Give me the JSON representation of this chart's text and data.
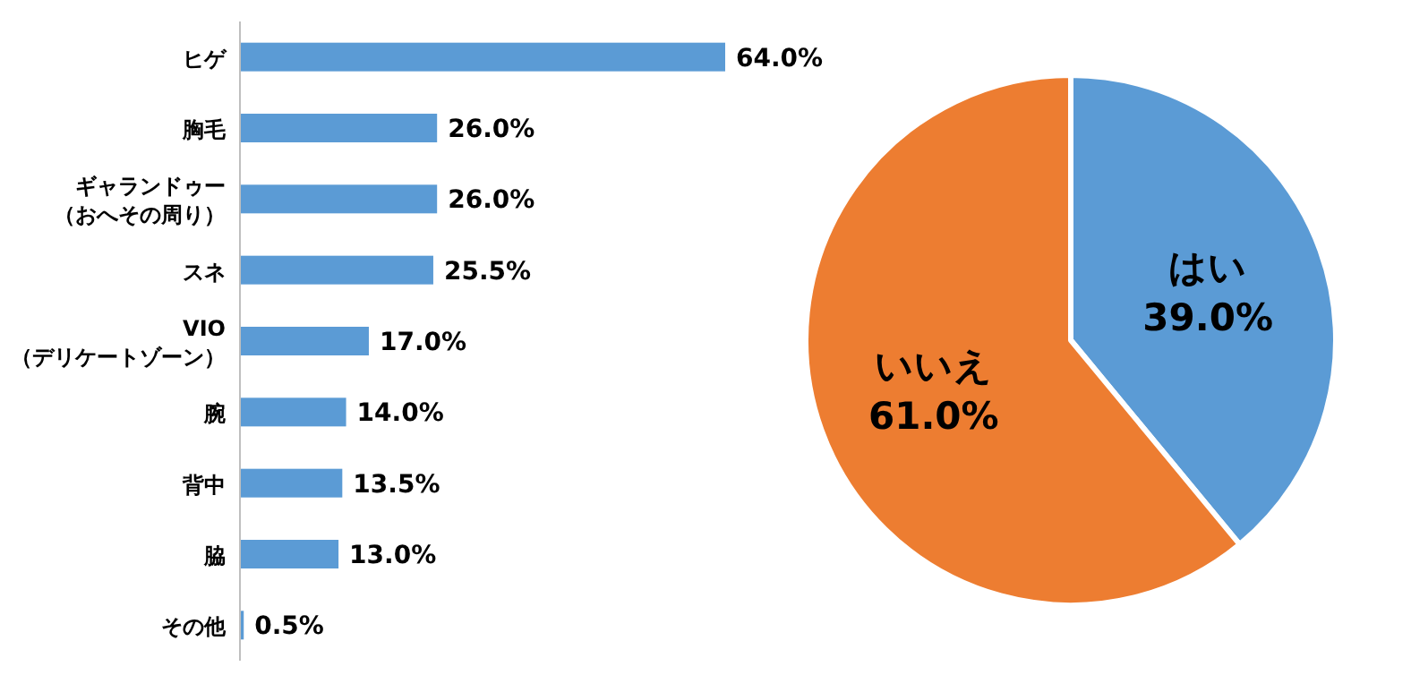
{
  "chart_data": [
    {
      "type": "bar",
      "orientation": "horizontal",
      "relative": false,
      "categories": [
        "ヒゲ",
        "胸毛",
        "ギャランドゥー（おへその周り）",
        "スネ",
        "VIO（デリケートゾーン）",
        "腕",
        "背中",
        "脇",
        "その他"
      ],
      "values": [
        64.0,
        26.0,
        26.0,
        25.5,
        17.0,
        14.0,
        13.5,
        13.0,
        0.5
      ],
      "value_labels": [
        "64.0%",
        "26.0%",
        "26.0%",
        "25.5%",
        "17.0%",
        "14.0%",
        "13.5%",
        "13.0%",
        "0.5%"
      ],
      "color": "#5b9bd5"
    },
    {
      "type": "pie",
      "categories": [
        "はい",
        "いいえ"
      ],
      "values": [
        39.0,
        61.0
      ],
      "value_labels": [
        "39.0%",
        "61.0%"
      ],
      "colors": [
        "#5b9bd5",
        "#ed7d31"
      ]
    }
  ]
}
